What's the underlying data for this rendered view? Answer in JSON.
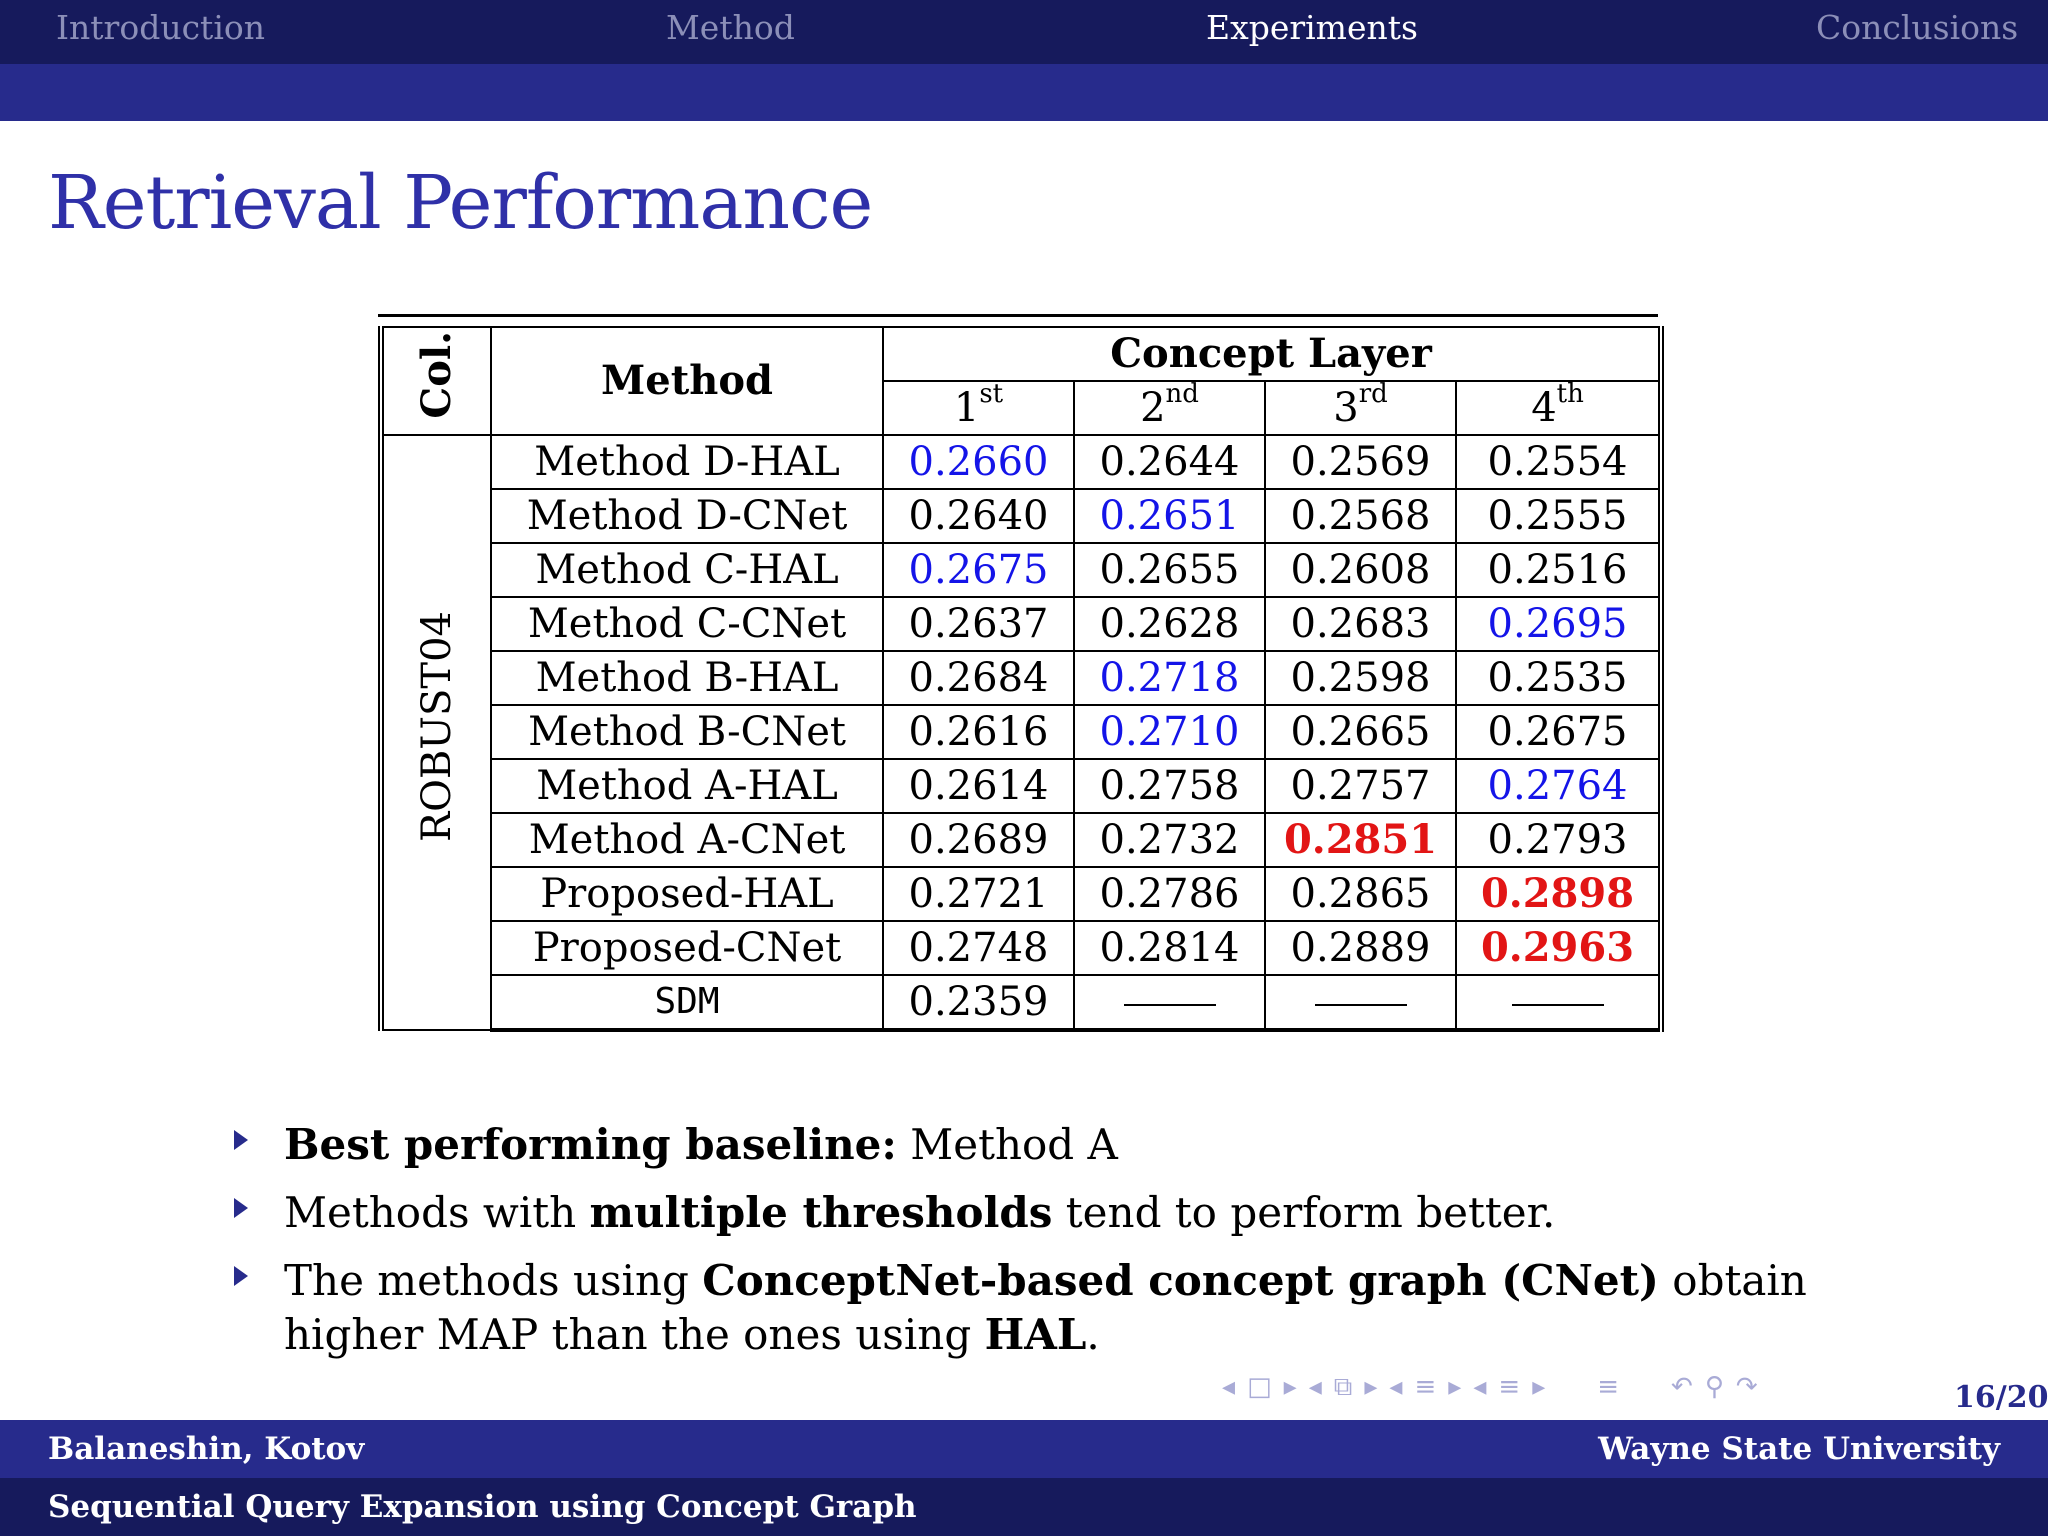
{
  "nav": {
    "items": [
      "Introduction",
      "Method",
      "Experiments",
      "Conclusions"
    ],
    "active": "Experiments"
  },
  "title": "Retrieval Performance",
  "table": {
    "col_header": "Col.",
    "method_header": "Method",
    "concept_layer_header": "Concept Layer",
    "layers": [
      {
        "num": "1",
        "sup": "st"
      },
      {
        "num": "2",
        "sup": "nd"
      },
      {
        "num": "3",
        "sup": "rd"
      },
      {
        "num": "4",
        "sup": "th"
      }
    ],
    "collection": "ROBUST04",
    "rows": [
      {
        "method": "Method D-HAL",
        "values": [
          "0.2660",
          "0.2644",
          "0.2569",
          "0.2554"
        ],
        "styles": [
          "blue",
          "",
          "",
          ""
        ]
      },
      {
        "method": "Method D-CNet",
        "values": [
          "0.2640",
          "0.2651",
          "0.2568",
          "0.2555"
        ],
        "styles": [
          "",
          "blue",
          "",
          ""
        ]
      },
      {
        "method": "Method C-HAL",
        "values": [
          "0.2675",
          "0.2655",
          "0.2608",
          "0.2516"
        ],
        "styles": [
          "blue",
          "",
          "",
          ""
        ]
      },
      {
        "method": "Method C-CNet",
        "values": [
          "0.2637",
          "0.2628",
          "0.2683",
          "0.2695"
        ],
        "styles": [
          "",
          "",
          "",
          "blue"
        ]
      },
      {
        "method": "Method B-HAL",
        "values": [
          "0.2684",
          "0.2718",
          "0.2598",
          "0.2535"
        ],
        "styles": [
          "",
          "blue",
          "",
          ""
        ]
      },
      {
        "method": "Method B-CNet",
        "values": [
          "0.2616",
          "0.2710",
          "0.2665",
          "0.2675"
        ],
        "styles": [
          "",
          "blue",
          "",
          ""
        ]
      },
      {
        "method": "Method A-HAL",
        "values": [
          "0.2614",
          "0.2758",
          "0.2757",
          "0.2764"
        ],
        "styles": [
          "",
          "",
          "",
          "blue"
        ]
      },
      {
        "method": "Method A-CNet",
        "values": [
          "0.2689",
          "0.2732",
          "0.2851",
          "0.2793"
        ],
        "styles": [
          "",
          "",
          "red",
          ""
        ]
      },
      {
        "method": "Proposed-HAL",
        "values": [
          "0.2721",
          "0.2786",
          "0.2865",
          "0.2898"
        ],
        "styles": [
          "",
          "",
          "",
          "red"
        ]
      },
      {
        "method": "Proposed-CNet",
        "values": [
          "0.2748",
          "0.2814",
          "0.2889",
          "0.2963"
        ],
        "styles": [
          "",
          "",
          "",
          "red"
        ]
      },
      {
        "method": "SDM",
        "values": [
          "0.2359",
          "—",
          "—",
          "—"
        ],
        "styles": [
          "",
          "",
          "",
          ""
        ],
        "mono": true
      }
    ]
  },
  "bullets": [
    {
      "parts": [
        {
          "text": "Best performing baseline:",
          "bold": true
        },
        {
          "text": " Method A",
          "bold": false
        }
      ]
    },
    {
      "parts": [
        {
          "text": "Methods with ",
          "bold": false
        },
        {
          "text": "multiple thresholds",
          "bold": true
        },
        {
          "text": " tend to perform better.",
          "bold": false
        }
      ]
    },
    {
      "parts": [
        {
          "text": "The methods using ",
          "bold": false
        },
        {
          "text": "ConceptNet-based concept graph (CNet)",
          "bold": true
        },
        {
          "text": " obtain higher MAP than the ones using ",
          "bold": false
        },
        {
          "text": "HAL",
          "bold": true
        },
        {
          "text": ".",
          "bold": false
        }
      ]
    }
  ],
  "page_number": "16/20",
  "footer": {
    "authors": "Balaneshin, Kotov",
    "institution": "Wayne State University",
    "talk_title": "Sequential Query Expansion using Concept Graph"
  },
  "colors": {
    "nav_dark": "#161a5c",
    "nav_band": "#272b8c",
    "title": "#2f30a8",
    "highlight_blue": "#1414e8",
    "highlight_red": "#e21515"
  }
}
